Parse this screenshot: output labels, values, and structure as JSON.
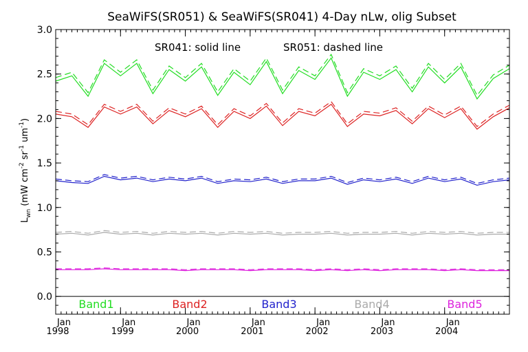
{
  "chart_data": {
    "type": "line",
    "title": "SeaWiFS(SR051) & SeaWiFS(SR041) 4-Day nLw, olig Subset",
    "ylabel_main": "L",
    "ylabel_sub": "wn",
    "ylabel_rest": "(mW cm",
    "ylabel_exp1": "-2",
    "ylabel_sr": " sr",
    "ylabel_exp2": "-1",
    "ylabel_um": " um",
    "ylabel_exp3": "-1",
    "ylabel_close": ")",
    "xlabel": "",
    "ylim": [
      -0.2,
      3.0
    ],
    "xlim": [
      1998.0,
      2005.0
    ],
    "yticks": [
      "0.0",
      "0.5",
      "1.0",
      "1.5",
      "2.0",
      "2.5",
      "3.0"
    ],
    "xticks": [
      {
        "month": "Jan",
        "year": "1998"
      },
      {
        "month": "Jan",
        "year": "1999"
      },
      {
        "month": "Jan",
        "year": "2000"
      },
      {
        "month": "Jan",
        "year": "2001"
      },
      {
        "month": "Jan",
        "year": "2002"
      },
      {
        "month": "Jan",
        "year": "2003"
      },
      {
        "month": "Jan",
        "year": "2004"
      }
    ],
    "annotation_solid": "SR041: solid line",
    "annotation_dashed": "SR051: dashed line",
    "zero_line": 0.0,
    "x_dates": [
      1998.0,
      1998.25,
      1998.5,
      1998.75,
      1999.0,
      1999.25,
      1999.5,
      1999.75,
      2000.0,
      2000.25,
      2000.5,
      2000.75,
      2001.0,
      2001.25,
      2001.5,
      2001.75,
      2002.0,
      2002.25,
      2002.5,
      2002.75,
      2003.0,
      2003.25,
      2003.5,
      2003.75,
      2004.0,
      2004.25,
      2004.5,
      2004.75,
      2005.0
    ],
    "series": [
      {
        "name": "Band1",
        "color": "#22dd22",
        "line": "solid",
        "values": [
          2.42,
          2.48,
          2.25,
          2.62,
          2.48,
          2.62,
          2.28,
          2.55,
          2.42,
          2.58,
          2.26,
          2.52,
          2.38,
          2.64,
          2.28,
          2.54,
          2.44,
          2.68,
          2.25,
          2.52,
          2.44,
          2.55,
          2.3,
          2.58,
          2.4,
          2.58,
          2.22,
          2.45,
          2.56
        ]
      },
      {
        "name": "Band1",
        "color": "#22dd22",
        "line": "dashed",
        "values": [
          2.46,
          2.52,
          2.29,
          2.66,
          2.52,
          2.66,
          2.32,
          2.59,
          2.46,
          2.62,
          2.3,
          2.56,
          2.42,
          2.68,
          2.32,
          2.58,
          2.48,
          2.72,
          2.29,
          2.56,
          2.48,
          2.59,
          2.34,
          2.62,
          2.44,
          2.62,
          2.26,
          2.49,
          2.6
        ]
      },
      {
        "name": "Band2",
        "color": "#dd2222",
        "line": "solid",
        "values": [
          2.05,
          2.02,
          1.9,
          2.13,
          2.05,
          2.13,
          1.94,
          2.09,
          2.02,
          2.11,
          1.9,
          2.08,
          2.0,
          2.14,
          1.92,
          2.08,
          2.03,
          2.16,
          1.91,
          2.05,
          2.03,
          2.09,
          1.94,
          2.11,
          2.01,
          2.11,
          1.88,
          2.02,
          2.12
        ]
      },
      {
        "name": "Band2",
        "color": "#dd2222",
        "line": "dashed",
        "values": [
          2.08,
          2.05,
          1.93,
          2.16,
          2.08,
          2.16,
          1.97,
          2.12,
          2.05,
          2.14,
          1.93,
          2.11,
          2.03,
          2.17,
          1.95,
          2.11,
          2.06,
          2.19,
          1.94,
          2.08,
          2.06,
          2.12,
          1.97,
          2.14,
          2.04,
          2.14,
          1.91,
          2.05,
          2.15
        ]
      },
      {
        "name": "Band3",
        "color": "#2222cc",
        "line": "solid",
        "values": [
          1.3,
          1.28,
          1.27,
          1.35,
          1.31,
          1.33,
          1.29,
          1.32,
          1.3,
          1.33,
          1.27,
          1.3,
          1.29,
          1.32,
          1.27,
          1.3,
          1.3,
          1.33,
          1.26,
          1.31,
          1.29,
          1.32,
          1.27,
          1.33,
          1.29,
          1.32,
          1.25,
          1.29,
          1.31
        ]
      },
      {
        "name": "Band3",
        "color": "#2222cc",
        "line": "dashed",
        "values": [
          1.32,
          1.3,
          1.29,
          1.37,
          1.33,
          1.35,
          1.31,
          1.34,
          1.32,
          1.35,
          1.29,
          1.32,
          1.31,
          1.34,
          1.29,
          1.32,
          1.32,
          1.35,
          1.28,
          1.33,
          1.31,
          1.34,
          1.29,
          1.35,
          1.31,
          1.34,
          1.27,
          1.31,
          1.33
        ]
      },
      {
        "name": "Band4",
        "color": "#aaaaaa",
        "line": "solid",
        "values": [
          0.7,
          0.71,
          0.69,
          0.72,
          0.7,
          0.71,
          0.69,
          0.71,
          0.7,
          0.71,
          0.69,
          0.71,
          0.7,
          0.71,
          0.69,
          0.7,
          0.7,
          0.71,
          0.69,
          0.7,
          0.7,
          0.71,
          0.69,
          0.71,
          0.7,
          0.71,
          0.69,
          0.7,
          0.7
        ]
      },
      {
        "name": "Band4",
        "color": "#aaaaaa",
        "line": "dashed",
        "values": [
          0.72,
          0.73,
          0.71,
          0.74,
          0.72,
          0.73,
          0.71,
          0.73,
          0.72,
          0.73,
          0.71,
          0.73,
          0.72,
          0.73,
          0.71,
          0.72,
          0.72,
          0.73,
          0.71,
          0.72,
          0.72,
          0.73,
          0.71,
          0.73,
          0.72,
          0.73,
          0.71,
          0.72,
          0.72
        ]
      },
      {
        "name": "Band5",
        "color": "#dd22dd",
        "line": "solid",
        "values": [
          0.3,
          0.3,
          0.3,
          0.31,
          0.3,
          0.3,
          0.3,
          0.3,
          0.29,
          0.3,
          0.3,
          0.3,
          0.29,
          0.3,
          0.3,
          0.3,
          0.29,
          0.3,
          0.29,
          0.3,
          0.29,
          0.3,
          0.3,
          0.3,
          0.29,
          0.3,
          0.29,
          0.29,
          0.29
        ]
      },
      {
        "name": "Band5",
        "color": "#dd22dd",
        "line": "dashed",
        "values": [
          0.31,
          0.31,
          0.31,
          0.32,
          0.31,
          0.31,
          0.31,
          0.31,
          0.3,
          0.31,
          0.31,
          0.31,
          0.3,
          0.31,
          0.31,
          0.31,
          0.3,
          0.31,
          0.3,
          0.31,
          0.3,
          0.31,
          0.31,
          0.31,
          0.3,
          0.31,
          0.3,
          0.3,
          0.3
        ]
      }
    ],
    "legend": [
      {
        "label": "Band1",
        "color": "#22dd22"
      },
      {
        "label": "Band2",
        "color": "#dd2222"
      },
      {
        "label": "Band3",
        "color": "#2222cc"
      },
      {
        "label": "Band4",
        "color": "#aaaaaa"
      },
      {
        "label": "Band5",
        "color": "#dd22dd"
      }
    ],
    "legend_placement": "bottom-inside",
    "grid": false
  }
}
